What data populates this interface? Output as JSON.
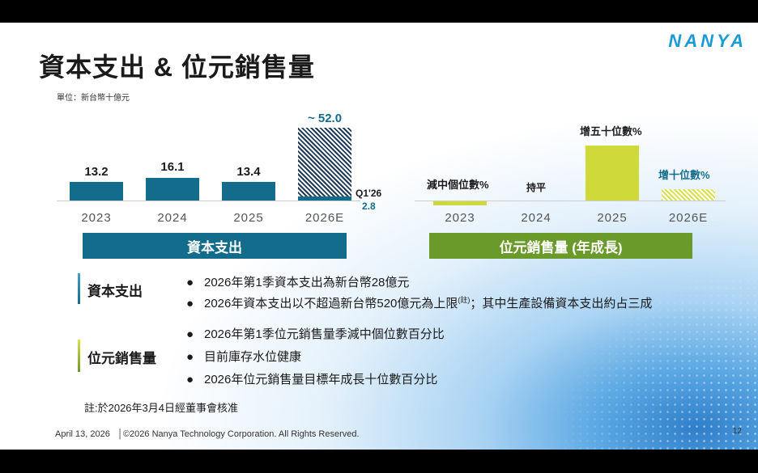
{
  "title": "資本支出 & 位元銷售量",
  "logo": "NANYA",
  "unit": "單位：新台幣十億元",
  "capex": {
    "header": "資本支出",
    "bars": [
      {
        "year": "2023",
        "label": "13.2",
        "value": 13.2
      },
      {
        "year": "2024",
        "label": "16.1",
        "value": 16.1
      },
      {
        "year": "2025",
        "label": "13.4",
        "value": 13.4
      },
      {
        "year": "2026E",
        "label": "~ 52.0",
        "value": 52.0
      }
    ],
    "q1_label": "Q1'26",
    "q1_value": "2.8"
  },
  "bits": {
    "header": "位元銷售量 (年成長)",
    "items": [
      {
        "year": "2023",
        "label": "減中個位數%"
      },
      {
        "year": "2024",
        "label": "持平"
      },
      {
        "year": "2025",
        "label": "增五十位數%"
      },
      {
        "year": "2026E",
        "label": "增十位數%"
      }
    ]
  },
  "capex_section": {
    "label": "資本支出",
    "bullets": [
      "2026年第1季資本支出為新台幣28億元",
      "2026年資本支出以不超過新台幣520億元為上限",
      "；其中生產設備資本支出約占三成"
    ],
    "sup": "(註)"
  },
  "bits_section": {
    "label": "位元銷售量",
    "bullets": [
      "2026年第1季位元銷售量季減中個位數百分比",
      "目前庫存水位健康",
      "2026年位元銷售量目標年成長十位數百分比"
    ]
  },
  "bullet_char": "●",
  "note": "註:於2026年3月4日經董事會核准",
  "footer": {
    "date": "April 13, 2026",
    "copyright": "│©2026 Nanya Technology Corporation. All Rights Reserved.",
    "page": "12"
  },
  "colors": {
    "capex_blue": "#146c8c",
    "bits_green": "#6a9a2a",
    "bits_bar": "#cfd93a"
  }
}
